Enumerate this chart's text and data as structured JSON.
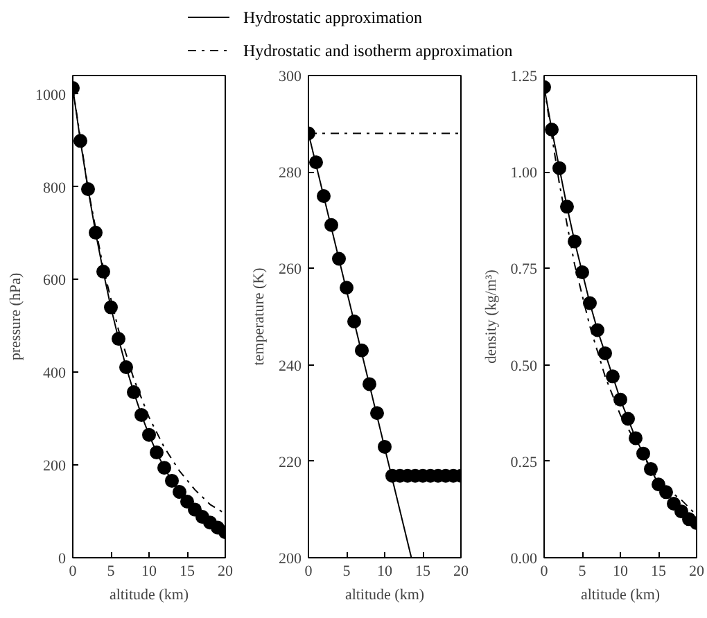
{
  "chart_data": [
    {
      "type": "line",
      "xlabel": "altitude (km)",
      "ylabel": "pressure (hPa)",
      "xlim": [
        0,
        20
      ],
      "xticks": [
        0,
        5,
        10,
        15,
        20
      ],
      "ylim": [
        0,
        1040
      ],
      "yticks": [
        0,
        200,
        400,
        600,
        800,
        1000
      ],
      "grid": false,
      "legend": "top",
      "series": [
        {
          "type": "scatter",
          "marker": "circle",
          "color": "#000000",
          "x": [
            0,
            1,
            2,
            3,
            4,
            5,
            6,
            7,
            8,
            9,
            10,
            11,
            12,
            13,
            14,
            15,
            16,
            17,
            18,
            19,
            20
          ],
          "values": [
            1013,
            899,
            795,
            701,
            617,
            540,
            472,
            411,
            357,
            308,
            265,
            227,
            194,
            166,
            142,
            121,
            104,
            88,
            76,
            65,
            55
          ]
        },
        {
          "name": "Hydrostatic approximation",
          "line_style": "solid",
          "color": "#000000",
          "x": [
            0,
            1,
            2,
            3,
            4,
            5,
            6,
            7,
            8,
            9,
            10,
            11,
            12,
            13,
            14,
            15,
            16,
            17,
            18,
            19,
            20
          ],
          "values": [
            1013,
            899,
            795,
            701,
            617,
            540,
            472,
            411,
            357,
            308,
            265,
            227,
            194,
            166,
            142,
            121,
            104,
            88,
            76,
            65,
            55
          ]
        },
        {
          "name": "Hydrostatic and isotherm approximation",
          "line_style": "dashdot",
          "color": "#000000",
          "x": [
            0,
            2,
            4,
            6,
            8,
            10,
            12,
            14,
            16,
            18,
            20
          ],
          "values": [
            1013,
            796,
            625,
            491,
            386,
            303,
            238,
            187,
            147,
            115,
            95
          ]
        }
      ]
    },
    {
      "type": "line",
      "xlabel": "altitude (km)",
      "ylabel": "temperature (K)",
      "xlim": [
        0,
        20
      ],
      "xticks": [
        0,
        5,
        10,
        15,
        20
      ],
      "ylim": [
        200,
        300
      ],
      "yticks": [
        200,
        220,
        240,
        260,
        280,
        300
      ],
      "grid": false,
      "series": [
        {
          "type": "scatter",
          "marker": "circle",
          "color": "#000000",
          "x": [
            0,
            1,
            2,
            3,
            4,
            5,
            6,
            7,
            8,
            9,
            10,
            11,
            12,
            13,
            14,
            15,
            16,
            17,
            18,
            19,
            20
          ],
          "values": [
            288,
            282,
            275,
            269,
            262,
            256,
            249,
            243,
            236,
            230,
            223,
            217,
            217,
            217,
            217,
            217,
            217,
            217,
            217,
            217,
            217
          ]
        },
        {
          "line_style": "solid",
          "color": "#000000",
          "x": [
            0,
            13.5
          ],
          "values": [
            288,
            200
          ]
        },
        {
          "line_style": "dashdot",
          "color": "#000000",
          "x": [
            0,
            20
          ],
          "values": [
            288,
            288
          ]
        }
      ]
    },
    {
      "type": "line",
      "xlabel": "altitude (km)",
      "ylabel": "density (kg/m³)",
      "xlim": [
        0,
        20
      ],
      "xticks": [
        0,
        5,
        10,
        15,
        20
      ],
      "ylim": [
        0,
        1.25
      ],
      "yticks": [
        {
          "value": 0,
          "label": "0.00"
        },
        {
          "value": 0.25,
          "label": "0.25"
        },
        {
          "value": 0.5,
          "label": "0.50"
        },
        {
          "value": 0.75,
          "label": "0.75"
        },
        {
          "value": 1,
          "label": "1.00"
        },
        {
          "value": 1.25,
          "label": "1.25"
        }
      ],
      "grid": false,
      "series": [
        {
          "type": "scatter",
          "marker": "circle",
          "color": "#000000",
          "x": [
            0,
            1,
            2,
            3,
            4,
            5,
            6,
            7,
            8,
            9,
            10,
            11,
            12,
            13,
            14,
            15,
            16,
            17,
            18,
            19,
            20
          ],
          "values": [
            1.22,
            1.11,
            1.01,
            0.91,
            0.82,
            0.74,
            0.66,
            0.59,
            0.53,
            0.47,
            0.41,
            0.36,
            0.31,
            0.27,
            0.23,
            0.19,
            0.17,
            0.14,
            0.12,
            0.1,
            0.09
          ]
        },
        {
          "line_style": "solid",
          "color": "#000000",
          "x": [
            0,
            1,
            2,
            3,
            4,
            5,
            6,
            7,
            8,
            9,
            10,
            11,
            12,
            13,
            14,
            15,
            16,
            17,
            18,
            19,
            20
          ],
          "values": [
            1.22,
            1.11,
            1.01,
            0.91,
            0.82,
            0.74,
            0.66,
            0.59,
            0.53,
            0.47,
            0.41,
            0.36,
            0.31,
            0.27,
            0.23,
            0.19,
            0.17,
            0.14,
            0.12,
            0.1,
            0.09
          ]
        },
        {
          "line_style": "dashdot",
          "color": "#000000",
          "x": [
            0,
            2,
            4,
            6,
            8,
            10,
            12,
            14,
            16,
            18,
            20
          ],
          "values": [
            1.22,
            0.97,
            0.76,
            0.6,
            0.47,
            0.37,
            0.3,
            0.23,
            0.18,
            0.15,
            0.11
          ]
        }
      ]
    }
  ]
}
